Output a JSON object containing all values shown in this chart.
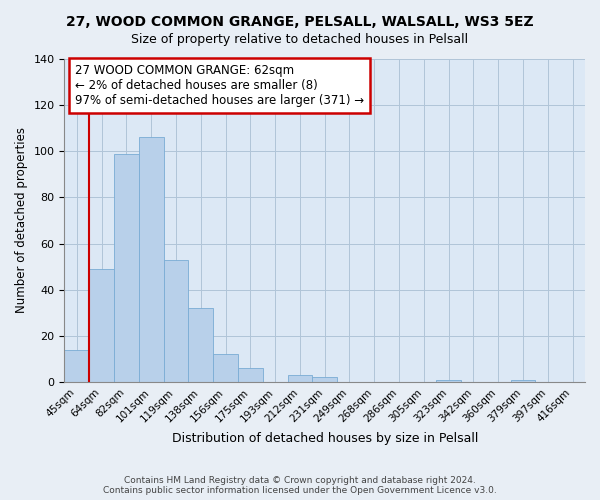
{
  "title": "27, WOOD COMMON GRANGE, PELSALL, WALSALL, WS3 5EZ",
  "subtitle": "Size of property relative to detached houses in Pelsall",
  "xlabel": "Distribution of detached houses by size in Pelsall",
  "ylabel": "Number of detached properties",
  "categories": [
    "45sqm",
    "64sqm",
    "82sqm",
    "101sqm",
    "119sqm",
    "138sqm",
    "156sqm",
    "175sqm",
    "193sqm",
    "212sqm",
    "231sqm",
    "249sqm",
    "268sqm",
    "286sqm",
    "305sqm",
    "323sqm",
    "342sqm",
    "360sqm",
    "379sqm",
    "397sqm",
    "416sqm"
  ],
  "values": [
    14,
    49,
    99,
    106,
    53,
    32,
    12,
    6,
    0,
    3,
    2,
    0,
    0,
    0,
    0,
    1,
    0,
    0,
    1,
    0,
    0
  ],
  "bar_color": "#b8d0ea",
  "bar_edge_color": "#7aacd4",
  "highlight_edge_color": "#cc0000",
  "ylim": [
    0,
    140
  ],
  "yticks": [
    0,
    20,
    40,
    60,
    80,
    100,
    120,
    140
  ],
  "annotation_line1": "27 WOOD COMMON GRANGE: 62sqm",
  "annotation_line2": "← 2% of detached houses are smaller (8)",
  "annotation_line3": "97% of semi-detached houses are larger (371) →",
  "annotation_box_edge": "#cc0000",
  "footer_line1": "Contains HM Land Registry data © Crown copyright and database right 2024.",
  "footer_line2": "Contains public sector information licensed under the Open Government Licence v3.0.",
  "background_color": "#e8eef5",
  "plot_background": "#dce8f5",
  "grid_color": "#b0c4d8",
  "title_fontsize": 10,
  "subtitle_fontsize": 9
}
